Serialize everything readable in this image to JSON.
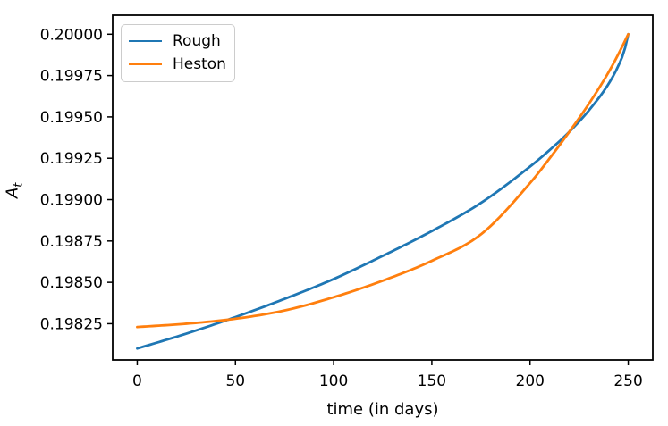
{
  "figure": {
    "background": "#ffffff"
  },
  "chart_data": {
    "type": "line",
    "title": "",
    "xlabel": "time (in days)",
    "ylabel": {
      "base": "A",
      "sub": "t"
    },
    "xlim": [
      -12.5,
      262.5
    ],
    "ylim": [
      0.198031,
      0.200115
    ],
    "xticks": [
      0,
      50,
      100,
      150,
      200,
      250
    ],
    "xtick_labels": [
      "0",
      "50",
      "100",
      "150",
      "200",
      "250"
    ],
    "yticks": [
      0.19825,
      0.1985,
      0.19875,
      0.199,
      0.19925,
      0.1995,
      0.19975,
      0.2
    ],
    "ytick_labels": [
      "0.19825",
      "0.19850",
      "0.19875",
      "0.19900",
      "0.19925",
      "0.19950",
      "0.19975",
      "0.20000"
    ],
    "grid": false,
    "legend": {
      "position": "upper left"
    },
    "axis_color": "#000000",
    "series": [
      {
        "name": "Rough",
        "color": "#1f77b4",
        "x": [
          0,
          25,
          50,
          75,
          100,
          125,
          150,
          175,
          200,
          210,
          220,
          230,
          240,
          245,
          248,
          250
        ],
        "y": [
          0.1981,
          0.19819,
          0.19829,
          0.1984,
          0.19852,
          0.19866,
          0.19881,
          0.19898,
          0.1992,
          0.1993,
          0.19941,
          0.19954,
          0.1997,
          0.19981,
          0.1999,
          0.2
        ]
      },
      {
        "name": "Heston",
        "color": "#ff7f0e",
        "x": [
          0,
          25,
          50,
          75,
          100,
          125,
          150,
          175,
          200,
          210,
          220,
          230,
          240,
          245,
          250
        ],
        "y": [
          0.19823,
          0.19825,
          0.19828,
          0.19833,
          0.19841,
          0.19851,
          0.19863,
          0.19879,
          0.1991,
          0.19925,
          0.19941,
          0.19958,
          0.19977,
          0.19988,
          0.2
        ]
      }
    ]
  }
}
